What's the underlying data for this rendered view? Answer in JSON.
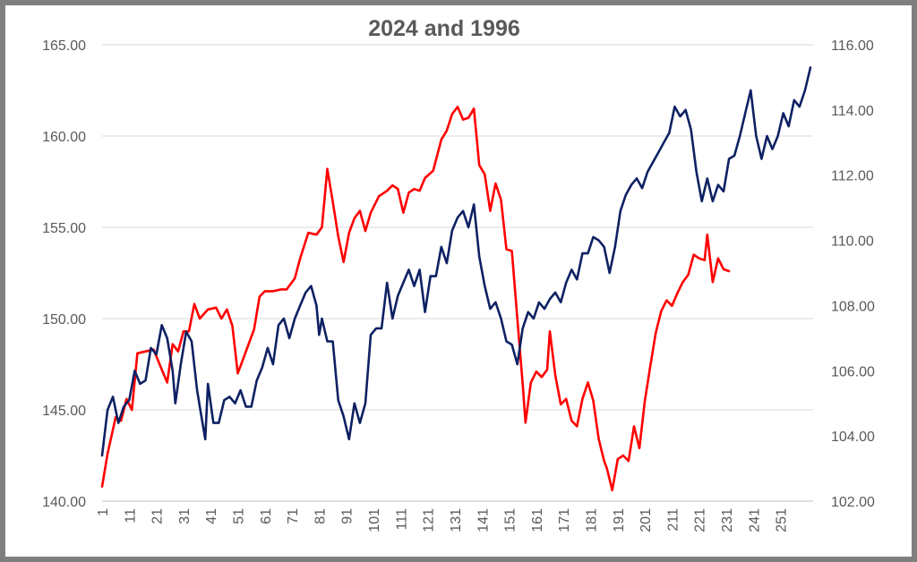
{
  "chart_data": {
    "type": "line",
    "title": "2024 and 1996",
    "xlabel": "",
    "ylabel": "",
    "grid": true,
    "legend": "none",
    "x_range": [
      1,
      263
    ],
    "x_ticks": [
      1,
      11,
      21,
      31,
      41,
      51,
      61,
      71,
      81,
      91,
      101,
      111,
      121,
      131,
      141,
      151,
      161,
      171,
      181,
      191,
      201,
      211,
      221,
      231,
      241,
      251
    ],
    "y_left": {
      "min": 140,
      "max": 165,
      "ticks": [
        "140.00",
        "145.00",
        "150.00",
        "155.00",
        "160.00",
        "165.00"
      ]
    },
    "y_right": {
      "min": 102,
      "max": 116,
      "ticks": [
        "102.00",
        "104.00",
        "106.00",
        "108.00",
        "110.00",
        "112.00",
        "114.00",
        "116.00"
      ]
    },
    "series": [
      {
        "name": "2024",
        "axis": "left",
        "color": "#ff0000",
        "points": [
          [
            1,
            140.8
          ],
          [
            3,
            142.6
          ],
          [
            6,
            144.6
          ],
          [
            8,
            144.4
          ],
          [
            10,
            145.6
          ],
          [
            12,
            145.0
          ],
          [
            14,
            148.1
          ],
          [
            17,
            148.2
          ],
          [
            20,
            148.3
          ],
          [
            23,
            147.2
          ],
          [
            25,
            146.5
          ],
          [
            27,
            148.6
          ],
          [
            29,
            148.2
          ],
          [
            31,
            149.3
          ],
          [
            33,
            149.3
          ],
          [
            35,
            150.8
          ],
          [
            37,
            150.0
          ],
          [
            40,
            150.5
          ],
          [
            43,
            150.6
          ],
          [
            45,
            150.0
          ],
          [
            47,
            150.5
          ],
          [
            49,
            149.6
          ],
          [
            51,
            147.0
          ],
          [
            53,
            147.8
          ],
          [
            55,
            148.6
          ],
          [
            57,
            149.4
          ],
          [
            59,
            151.2
          ],
          [
            61,
            151.5
          ],
          [
            64,
            151.5
          ],
          [
            67,
            151.6
          ],
          [
            69,
            151.6
          ],
          [
            72,
            152.2
          ],
          [
            74,
            153.3
          ],
          [
            77,
            154.7
          ],
          [
            80,
            154.6
          ],
          [
            82,
            155.0
          ],
          [
            84,
            158.2
          ],
          [
            86,
            156.4
          ],
          [
            88,
            154.5
          ],
          [
            90,
            153.1
          ],
          [
            92,
            154.7
          ],
          [
            94,
            155.5
          ],
          [
            96,
            155.9
          ],
          [
            98,
            154.8
          ],
          [
            100,
            155.8
          ],
          [
            103,
            156.7
          ],
          [
            106,
            157.0
          ],
          [
            108,
            157.3
          ],
          [
            110,
            157.1
          ],
          [
            112,
            155.8
          ],
          [
            114,
            156.9
          ],
          [
            116,
            157.1
          ],
          [
            118,
            157.0
          ],
          [
            120,
            157.7
          ],
          [
            123,
            158.1
          ],
          [
            126,
            159.8
          ],
          [
            128,
            160.3
          ],
          [
            130,
            161.2
          ],
          [
            132,
            161.6
          ],
          [
            134,
            160.9
          ],
          [
            136,
            161.0
          ],
          [
            138,
            161.5
          ],
          [
            140,
            158.4
          ],
          [
            142,
            157.9
          ],
          [
            144,
            155.9
          ],
          [
            146,
            157.4
          ],
          [
            148,
            156.5
          ],
          [
            150,
            153.8
          ],
          [
            152,
            153.7
          ],
          [
            154,
            150.0
          ],
          [
            156,
            146.4
          ],
          [
            157,
            144.3
          ],
          [
            159,
            146.5
          ],
          [
            161,
            147.1
          ],
          [
            163,
            146.8
          ],
          [
            165,
            147.2
          ],
          [
            166,
            149.3
          ],
          [
            168,
            146.9
          ],
          [
            170,
            145.3
          ],
          [
            172,
            145.6
          ],
          [
            174,
            144.4
          ],
          [
            176,
            144.1
          ],
          [
            178,
            145.6
          ],
          [
            180,
            146.5
          ],
          [
            182,
            145.5
          ],
          [
            184,
            143.4
          ],
          [
            186,
            142.2
          ],
          [
            187,
            141.8
          ],
          [
            189,
            140.6
          ],
          [
            191,
            142.3
          ],
          [
            193,
            142.5
          ],
          [
            195,
            142.2
          ],
          [
            197,
            144.1
          ],
          [
            199,
            142.9
          ],
          [
            201,
            145.5
          ],
          [
            203,
            147.4
          ],
          [
            205,
            149.2
          ],
          [
            207,
            150.4
          ],
          [
            209,
            151.0
          ],
          [
            211,
            150.7
          ],
          [
            213,
            151.4
          ],
          [
            215,
            152.0
          ],
          [
            217,
            152.4
          ],
          [
            219,
            153.5
          ],
          [
            221,
            153.3
          ],
          [
            223,
            153.2
          ],
          [
            224,
            154.6
          ],
          [
            226,
            152.0
          ],
          [
            228,
            153.3
          ],
          [
            230,
            152.7
          ],
          [
            232,
            152.6
          ]
        ]
      },
      {
        "name": "1996",
        "axis": "right",
        "color": "#0d2163",
        "points": [
          [
            1,
            103.4
          ],
          [
            3,
            104.8
          ],
          [
            5,
            105.2
          ],
          [
            7,
            104.4
          ],
          [
            9,
            104.9
          ],
          [
            11,
            105.1
          ],
          [
            13,
            106.0
          ],
          [
            15,
            105.6
          ],
          [
            17,
            105.7
          ],
          [
            19,
            106.7
          ],
          [
            21,
            106.5
          ],
          [
            23,
            107.4
          ],
          [
            25,
            107.0
          ],
          [
            27,
            106.0
          ],
          [
            28,
            105.0
          ],
          [
            30,
            106.2
          ],
          [
            32,
            107.2
          ],
          [
            34,
            106.9
          ],
          [
            36,
            105.4
          ],
          [
            37,
            104.9
          ],
          [
            39,
            103.9
          ],
          [
            40,
            105.6
          ],
          [
            42,
            104.4
          ],
          [
            44,
            104.4
          ],
          [
            46,
            105.1
          ],
          [
            48,
            105.2
          ],
          [
            50,
            105.0
          ],
          [
            52,
            105.4
          ],
          [
            54,
            104.9
          ],
          [
            56,
            104.9
          ],
          [
            58,
            105.7
          ],
          [
            60,
            106.1
          ],
          [
            62,
            106.7
          ],
          [
            64,
            106.2
          ],
          [
            66,
            107.4
          ],
          [
            68,
            107.6
          ],
          [
            70,
            107.0
          ],
          [
            72,
            107.6
          ],
          [
            74,
            108.0
          ],
          [
            76,
            108.4
          ],
          [
            78,
            108.6
          ],
          [
            80,
            108.0
          ],
          [
            81,
            107.1
          ],
          [
            82,
            107.6
          ],
          [
            84,
            106.9
          ],
          [
            86,
            106.9
          ],
          [
            88,
            105.1
          ],
          [
            90,
            104.6
          ],
          [
            92,
            103.9
          ],
          [
            94,
            105.0
          ],
          [
            96,
            104.4
          ],
          [
            98,
            105.0
          ],
          [
            100,
            107.1
          ],
          [
            102,
            107.3
          ],
          [
            104,
            107.3
          ],
          [
            106,
            108.7
          ],
          [
            108,
            107.6
          ],
          [
            110,
            108.3
          ],
          [
            112,
            108.7
          ],
          [
            114,
            109.1
          ],
          [
            116,
            108.6
          ],
          [
            118,
            109.1
          ],
          [
            120,
            107.8
          ],
          [
            122,
            108.9
          ],
          [
            124,
            108.9
          ],
          [
            126,
            109.8
          ],
          [
            128,
            109.3
          ],
          [
            130,
            110.3
          ],
          [
            132,
            110.7
          ],
          [
            134,
            110.9
          ],
          [
            136,
            110.4
          ],
          [
            138,
            111.1
          ],
          [
            140,
            109.5
          ],
          [
            142,
            108.6
          ],
          [
            144,
            107.9
          ],
          [
            146,
            108.1
          ],
          [
            148,
            107.6
          ],
          [
            150,
            106.9
          ],
          [
            152,
            106.8
          ],
          [
            154,
            106.2
          ],
          [
            156,
            107.3
          ],
          [
            158,
            107.8
          ],
          [
            160,
            107.6
          ],
          [
            162,
            108.1
          ],
          [
            164,
            107.9
          ],
          [
            166,
            108.2
          ],
          [
            168,
            108.4
          ],
          [
            170,
            108.1
          ],
          [
            172,
            108.7
          ],
          [
            174,
            109.1
          ],
          [
            176,
            108.8
          ],
          [
            178,
            109.6
          ],
          [
            180,
            109.6
          ],
          [
            182,
            110.1
          ],
          [
            184,
            110.0
          ],
          [
            186,
            109.8
          ],
          [
            188,
            109.0
          ],
          [
            190,
            109.8
          ],
          [
            192,
            110.9
          ],
          [
            194,
            111.4
          ],
          [
            196,
            111.7
          ],
          [
            198,
            111.9
          ],
          [
            200,
            111.6
          ],
          [
            202,
            112.1
          ],
          [
            204,
            112.4
          ],
          [
            206,
            112.7
          ],
          [
            208,
            113.0
          ],
          [
            210,
            113.3
          ],
          [
            212,
            114.1
          ],
          [
            214,
            113.8
          ],
          [
            216,
            114.0
          ],
          [
            218,
            113.4
          ],
          [
            220,
            112.1
          ],
          [
            222,
            111.2
          ],
          [
            224,
            111.9
          ],
          [
            226,
            111.2
          ],
          [
            228,
            111.7
          ],
          [
            230,
            111.5
          ],
          [
            232,
            112.5
          ],
          [
            234,
            112.6
          ],
          [
            236,
            113.2
          ],
          [
            238,
            113.9
          ],
          [
            240,
            114.6
          ],
          [
            242,
            113.2
          ],
          [
            244,
            112.5
          ],
          [
            246,
            113.2
          ],
          [
            248,
            112.8
          ],
          [
            250,
            113.2
          ],
          [
            252,
            113.9
          ],
          [
            254,
            113.5
          ],
          [
            256,
            114.3
          ],
          [
            258,
            114.1
          ],
          [
            260,
            114.6
          ],
          [
            262,
            115.3
          ]
        ]
      }
    ]
  }
}
